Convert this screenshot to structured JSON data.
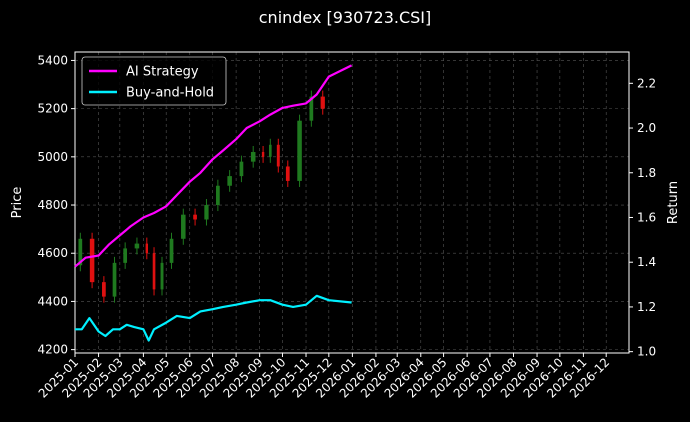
{
  "chart_data": {
    "type": "line",
    "title": "cnindex [930723.CSI]",
    "ylabel_left": "Price",
    "ylabel_right": "Return",
    "x_range": [
      "2025-01-01",
      "2026-12-31"
    ],
    "ylim_left": [
      4186,
      5435
    ],
    "ylim_right": [
      0.994,
      2.34
    ],
    "yticks_left": [
      4200,
      4400,
      4600,
      4800,
      5000,
      5200,
      5400
    ],
    "yticks_right": [
      "1.0",
      "1.2",
      "1.4",
      "1.6",
      "1.8",
      "2.0",
      "2.2"
    ],
    "xticks": [
      "2025-01",
      "2025-02",
      "2025-03",
      "2025-04",
      "2025-05",
      "2025-06",
      "2025-07",
      "2025-08",
      "2025-09",
      "2025-10",
      "2025-11",
      "2025-12",
      "2026-01",
      "2026-02",
      "2026-03",
      "2026-04",
      "2026-05",
      "2026-06",
      "2026-07",
      "2026-08",
      "2026-09",
      "2026-10",
      "2026-11",
      "2026-12"
    ],
    "grid": true,
    "legend_position": "top-left",
    "colors": {
      "up": "#1f7a1f",
      "down": "#e01010",
      "strategy": "#ff00ff",
      "buyhold": "#00f0ff",
      "grid": "#555555"
    },
    "price": {
      "dates": [
        "2025-01-01",
        "2025-01-15",
        "2025-02-01",
        "2025-02-15",
        "2025-03-01",
        "2025-03-15",
        "2025-04-01",
        "2025-04-10",
        "2025-04-20",
        "2025-05-01",
        "2025-05-15",
        "2025-06-01",
        "2025-06-15",
        "2025-07-01",
        "2025-07-15",
        "2025-08-01",
        "2025-08-15",
        "2025-09-01",
        "2025-09-10",
        "2025-09-20",
        "2025-10-01",
        "2025-10-15",
        "2025-11-01",
        "2025-11-15",
        "2025-12-01"
      ],
      "close": [
        4550,
        4660,
        4480,
        4420,
        4560,
        4620,
        4640,
        4600,
        4450,
        4560,
        4660,
        4760,
        4740,
        4800,
        4880,
        4920,
        4980,
        5020,
        5000,
        5050,
        4960,
        4900,
        5150,
        5250,
        5200
      ]
    },
    "series": [
      {
        "name": "AI Strategy",
        "x": [
          "2025-01-01",
          "2025-01-15",
          "2025-02-01",
          "2025-02-15",
          "2025-03-01",
          "2025-03-15",
          "2025-04-01",
          "2025-04-15",
          "2025-05-01",
          "2025-05-15",
          "2025-06-01",
          "2025-06-15",
          "2025-07-01",
          "2025-07-15",
          "2025-08-01",
          "2025-08-15",
          "2025-09-01",
          "2025-09-15",
          "2025-10-01",
          "2025-10-15",
          "2025-11-01",
          "2025-11-15",
          "2025-12-01",
          "2025-12-31"
        ],
        "values": [
          1.38,
          1.42,
          1.43,
          1.48,
          1.52,
          1.56,
          1.6,
          1.62,
          1.65,
          1.7,
          1.76,
          1.8,
          1.86,
          1.9,
          1.95,
          2.0,
          2.03,
          2.06,
          2.09,
          2.1,
          2.11,
          2.15,
          2.23,
          2.28
        ]
      },
      {
        "name": "Buy-and-Hold",
        "x": [
          "2025-01-01",
          "2025-01-10",
          "2025-01-20",
          "2025-02-01",
          "2025-02-10",
          "2025-02-20",
          "2025-03-01",
          "2025-03-10",
          "2025-03-20",
          "2025-04-01",
          "2025-04-08",
          "2025-04-15",
          "2025-05-01",
          "2025-05-15",
          "2025-06-01",
          "2025-06-15",
          "2025-07-01",
          "2025-07-15",
          "2025-08-01",
          "2025-08-15",
          "2025-09-01",
          "2025-09-15",
          "2025-10-01",
          "2025-10-15",
          "2025-11-01",
          "2025-11-15",
          "2025-12-01",
          "2025-12-31"
        ],
        "values": [
          1.1,
          1.1,
          1.15,
          1.09,
          1.07,
          1.1,
          1.1,
          1.12,
          1.11,
          1.1,
          1.05,
          1.1,
          1.13,
          1.16,
          1.15,
          1.18,
          1.19,
          1.2,
          1.21,
          1.22,
          1.23,
          1.23,
          1.21,
          1.2,
          1.21,
          1.25,
          1.23,
          1.22
        ]
      }
    ]
  }
}
